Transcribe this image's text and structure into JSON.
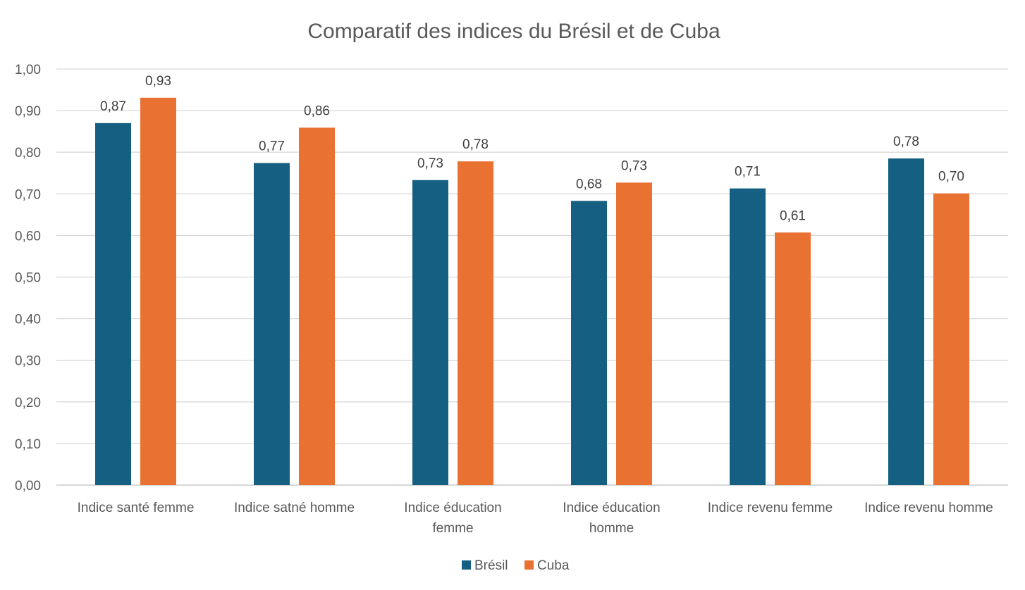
{
  "chart_data": {
    "type": "bar",
    "title": "Comparatif des indices du Brésil et de Cuba",
    "categories": [
      [
        "Indice santé femme"
      ],
      [
        "Indice satné homme"
      ],
      [
        "Indice éducation",
        "femme"
      ],
      [
        "Indice éducation",
        "homme"
      ],
      [
        "Indice revenu femme"
      ],
      [
        "Indice revenu homme"
      ]
    ],
    "series": [
      {
        "name": "Brésil",
        "color": "#156082",
        "values": [
          0.87,
          0.774,
          0.733,
          0.683,
          0.713,
          0.785
        ],
        "labels": [
          "0,87",
          "0,77",
          "0,73",
          "0,68",
          "0,71",
          "0,78"
        ]
      },
      {
        "name": "Cuba",
        "color": "#E97132",
        "values": [
          0.931,
          0.859,
          0.778,
          0.727,
          0.607,
          0.701
        ],
        "labels": [
          "0,93",
          "0,86",
          "0,78",
          "0,73",
          "0,61",
          "0,70"
        ]
      }
    ],
    "ylim": [
      0,
      1
    ],
    "yticks": [
      "0,00",
      "0,10",
      "0,20",
      "0,30",
      "0,40",
      "0,50",
      "0,60",
      "0,70",
      "0,80",
      "0,90",
      "1,00"
    ],
    "xlabel": "",
    "ylabel": "",
    "grid": true,
    "legend_position": "bottom"
  }
}
